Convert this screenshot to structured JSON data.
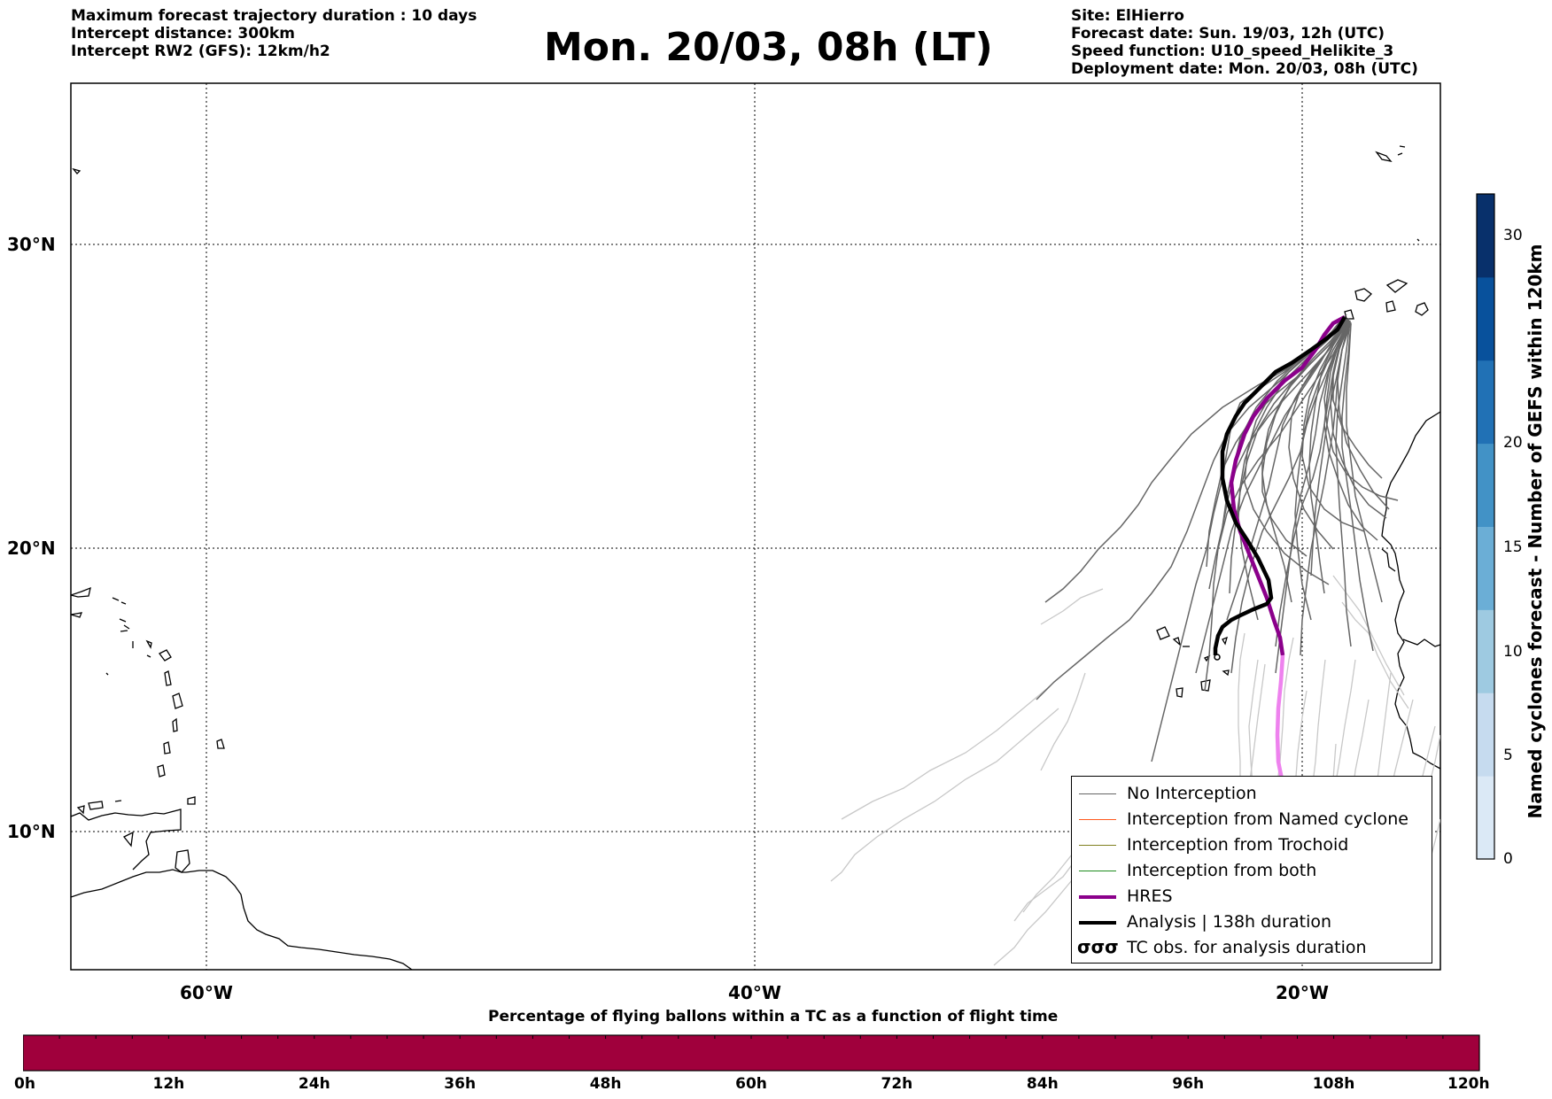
{
  "header": {
    "left": [
      "Maximum forecast trajectory duration : 10 days",
      "Intercept distance: 300km",
      "Intercept RW2 (GFS):  12km/h2"
    ],
    "title": "Mon. 20/03, 08h (LT)",
    "right": [
      "Site: ElHierro",
      "Forecast date: Sun. 19/03, 12h (UTC)",
      "Speed function: U10_speed_Helikite_3",
      "Deployment date: Mon. 20/03, 08h (UTC)"
    ]
  },
  "map": {
    "lat_labels": [
      "30°N",
      "20°N",
      "10°N"
    ],
    "lon_labels": [
      "60°W",
      "40°W",
      "20°W"
    ],
    "colors": {
      "no_interception": "#666666",
      "late_tracks": "#c8c8c8",
      "named_cyclone": "#ff5a1e",
      "trochoid": "#808020",
      "both": "#1e8c1e",
      "hres": "#8b008b",
      "hres_late": "#ee82ee",
      "analysis": "#000000"
    }
  },
  "legend": {
    "items": [
      {
        "label": "No Interception",
        "icon": "thin-gray-line"
      },
      {
        "label": "Interception from Named cyclone",
        "icon": "thin-orange-line"
      },
      {
        "label": "Interception from Trochoid",
        "icon": "thin-olive-line"
      },
      {
        "label": "Interception from both",
        "icon": "thin-green-line"
      },
      {
        "label": "HRES",
        "icon": "thick-purple-line"
      },
      {
        "label": "Analysis | 138h duration",
        "icon": "thick-black-line"
      },
      {
        "label": "TC obs. for analysis duration",
        "icon": "cyclone-symbols-icon",
        "symbol": "σσσ"
      }
    ]
  },
  "colorbar_right": {
    "label": "Named cyclones forecast - Number of GEFS within 120km",
    "ticks": [
      "30",
      "20",
      "15",
      "10",
      "5",
      "0"
    ],
    "range": [
      0,
      32
    ],
    "colors": [
      "#dbe9f6",
      "#c6dbef",
      "#9ecae1",
      "#6baed6",
      "#4292c6",
      "#2171b5",
      "#08519c",
      "#08306b"
    ]
  },
  "colorbar_bottom": {
    "title": "Percentage of flying ballons within a TC as a function of flight time",
    "ticks": [
      "0h",
      "12h",
      "24h",
      "36h",
      "48h",
      "60h",
      "72h",
      "84h",
      "96h",
      "108h",
      "120h"
    ],
    "fill_color": "#a0003c"
  }
}
